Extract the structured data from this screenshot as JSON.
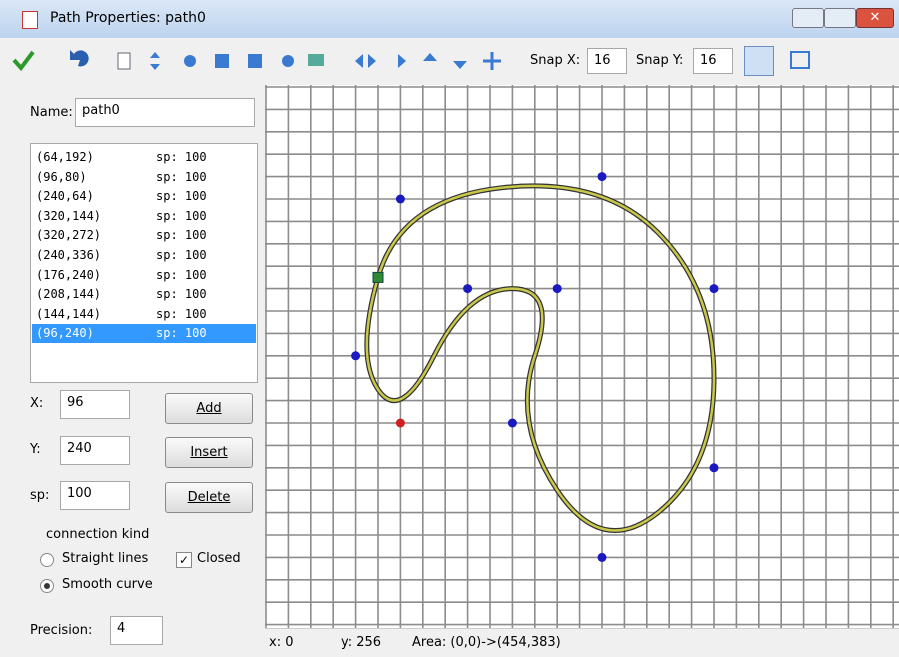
{
  "window": {
    "title": "Path Properties: path0"
  },
  "toolbar": {
    "snap_x_label": "Snap X:",
    "snap_x": "16",
    "snap_y_label": "Snap Y:",
    "snap_y": "16"
  },
  "panel": {
    "name_label": "Name:",
    "name": "path0",
    "list": [
      [
        "(64,192)",
        "sp: 100"
      ],
      [
        "(96,80)",
        "sp: 100"
      ],
      [
        "(240,64)",
        "sp: 100"
      ],
      [
        "(320,144)",
        "sp: 100"
      ],
      [
        "(320,272)",
        "sp: 100"
      ],
      [
        "(240,336)",
        "sp: 100"
      ],
      [
        "(176,240)",
        "sp: 100"
      ],
      [
        "(208,144)",
        "sp: 100"
      ],
      [
        "(144,144)",
        "sp: 100"
      ],
      [
        "(96,240)",
        "sp: 100"
      ]
    ],
    "selected_index": 9,
    "x_label": "X:",
    "x": "96",
    "y_label": "Y:",
    "y": "240",
    "sp_label": "sp:",
    "sp": "100",
    "add": "Add",
    "insert": "Insert",
    "delete": "Delete",
    "connection_kind": "connection kind",
    "straight": "Straight lines",
    "smooth": "Smooth curve",
    "closed": "Closed",
    "precision_label": "Precision:",
    "precision": "4"
  },
  "canvas": {
    "points": [
      [
        64,
        192
      ],
      [
        96,
        80
      ],
      [
        240,
        64
      ],
      [
        320,
        144
      ],
      [
        320,
        272
      ],
      [
        240,
        336
      ],
      [
        176,
        240
      ],
      [
        208,
        144
      ],
      [
        144,
        144
      ],
      [
        96,
        240
      ]
    ]
  },
  "status": {
    "x": "x: 0",
    "y": "y: 256",
    "area": "Area: (0,0)->(454,383)"
  }
}
